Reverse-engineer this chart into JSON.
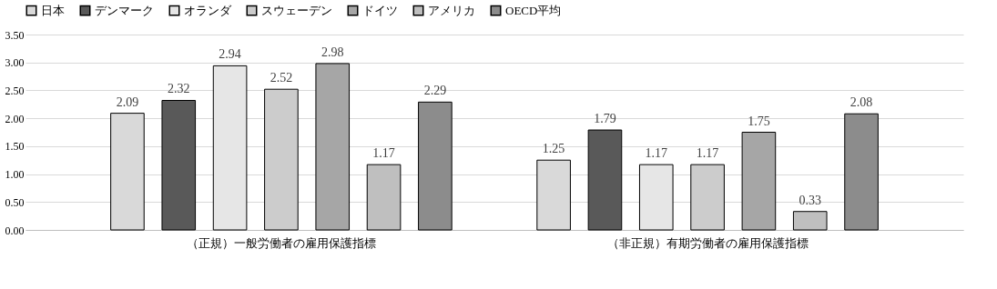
{
  "chart_data": {
    "type": "bar",
    "categories": [
      "（正規）一般労働者の雇用保護指標",
      "（非正規）有期労働者の雇用保護指標"
    ],
    "series": [
      {
        "name": "日本",
        "color": "#d9d9d9",
        "values": [
          2.09,
          1.25
        ]
      },
      {
        "name": "デンマーク",
        "color": "#595959",
        "values": [
          2.32,
          1.79
        ]
      },
      {
        "name": "オランダ",
        "color": "#e6e6e6",
        "values": [
          2.94,
          1.17
        ]
      },
      {
        "name": "スウェーデン",
        "color": "#cccccc",
        "values": [
          2.52,
          1.17
        ]
      },
      {
        "name": "ドイツ",
        "color": "#a6a6a6",
        "values": [
          2.98,
          1.75
        ]
      },
      {
        "name": "アメリカ",
        "color": "#bfbfbf",
        "values": [
          1.17,
          0.33
        ]
      },
      {
        "name": "OECD平均",
        "color": "#8c8c8c",
        "values": [
          2.29,
          2.08
        ]
      }
    ],
    "ylim": [
      0,
      3.5
    ],
    "yticks": [
      {
        "value": 0,
        "label": "0.00"
      },
      {
        "value": 0.5,
        "label": "0.50"
      },
      {
        "value": 1,
        "label": "1.00"
      },
      {
        "value": 1.5,
        "label": "1.50"
      },
      {
        "value": 2,
        "label": "2.00"
      },
      {
        "value": 2.5,
        "label": "2.50"
      },
      {
        "value": 3,
        "label": "3.00"
      },
      {
        "value": 3.5,
        "label": "3.50"
      }
    ],
    "grid": "y",
    "legend": "top",
    "data_labels": true
  }
}
